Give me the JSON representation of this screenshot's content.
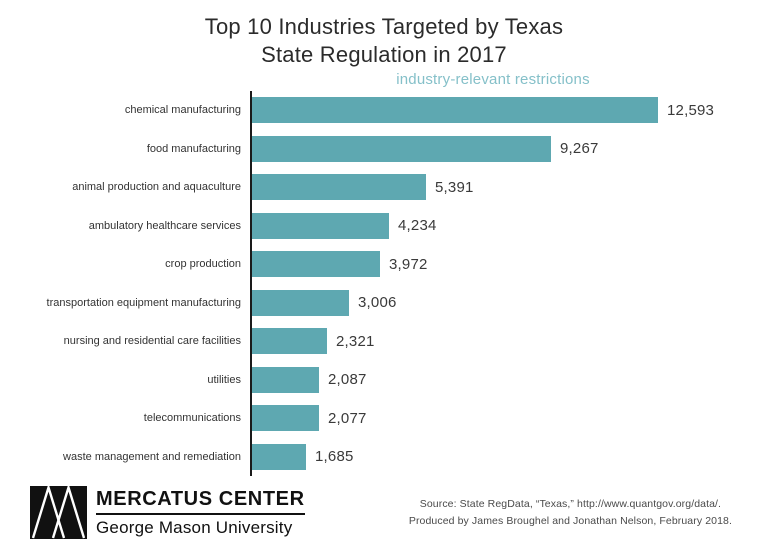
{
  "title": {
    "line1": "Top 10 Industries Targeted by Texas",
    "line2": "State Regulation in 2017"
  },
  "subtitle": "industry-relevant restrictions",
  "chart_data": {
    "type": "bar",
    "orientation": "horizontal",
    "title": "Top 10 Industries Targeted by Texas State Regulation in 2017",
    "xlabel": "industry-relevant restrictions",
    "ylabel": "",
    "xlim": [
      0,
      13000
    ],
    "grid": false,
    "legend": "none",
    "bar_color": "#5ea8b1",
    "categories": [
      "chemical manufacturing",
      "food manufacturing",
      "animal production and aquaculture",
      "ambulatory healthcare services",
      "crop production",
      "transportation equipment manufacturing",
      "nursing and residential care facilities",
      "utilities",
      "telecommunications",
      "waste management and remediation"
    ],
    "values": [
      12593,
      9267,
      5391,
      4234,
      3972,
      3006,
      2321,
      2087,
      2077,
      1685
    ],
    "value_labels": [
      "12,593",
      "9,267",
      "5,391",
      "4,234",
      "3,972",
      "3,006",
      "2,321",
      "2,087",
      "2,077",
      "1,685"
    ]
  },
  "footer": {
    "logo_title": "MERCATUS CENTER",
    "logo_subtitle": "George Mason University",
    "source_line1": "Source: State RegData, “Texas,” http://www.quantgov.org/data/.",
    "source_line2": "Produced by James Broughel and Jonathan Nelson, February 2018."
  },
  "colors": {
    "bar": "#5ea8b1",
    "subtitle_text": "#85c0c9",
    "title_text": "#2b2b2b",
    "axis_line": "#1a1a1a"
  }
}
